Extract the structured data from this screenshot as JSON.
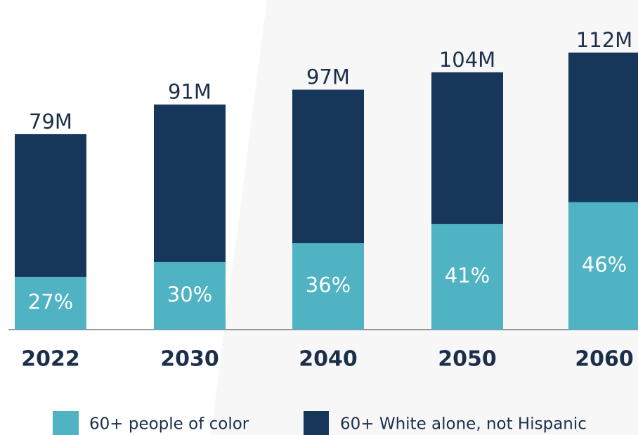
{
  "chart_data": {
    "type": "bar",
    "stacked": true,
    "categories": [
      "2022",
      "2030",
      "2040",
      "2050",
      "2060"
    ],
    "series": [
      {
        "name": "60+ people of color",
        "color": "#4fb3c4",
        "values": [
          27,
          30,
          36,
          41,
          46
        ],
        "value_labels": [
          "27%",
          "30%",
          "36%",
          "41%",
          "46%"
        ]
      },
      {
        "name": "60+ White alone, not Hispanic",
        "color": "#17375a",
        "values": [
          79,
          91,
          97,
          104,
          112
        ],
        "value_labels": [
          "79M",
          "91M",
          "97M",
          "104M",
          "112M"
        ]
      }
    ]
  }
}
